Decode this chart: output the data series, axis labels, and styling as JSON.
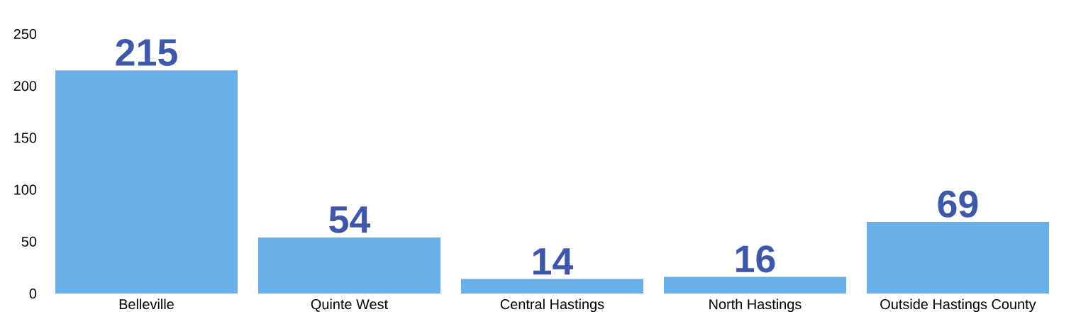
{
  "chart_data": {
    "type": "bar",
    "categories": [
      "Belleville",
      "Quinte West",
      "Central Hastings",
      "North Hastings",
      "Outside Hastings County"
    ],
    "values": [
      215,
      54,
      14,
      16,
      69
    ],
    "color": "#6aafe8",
    "ylim": [
      0,
      250
    ],
    "yticks": [
      0,
      50,
      100,
      150,
      200,
      250
    ],
    "grid": false,
    "data_labels": true
  }
}
